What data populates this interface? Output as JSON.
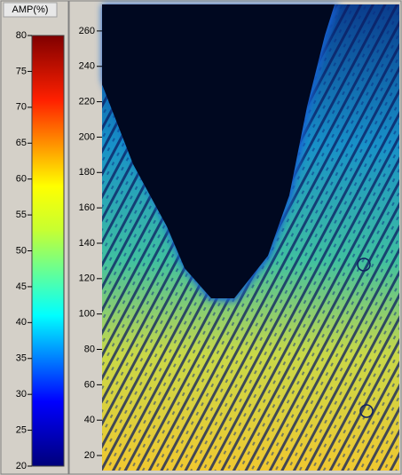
{
  "colorbar": {
    "title": "AMP(%)",
    "range": [
      20,
      80
    ],
    "ticks": [
      20,
      25,
      30,
      35,
      40,
      45,
      50,
      55,
      60,
      65,
      70,
      75,
      80
    ]
  },
  "image_axis": {
    "range": [
      11.5,
      275
    ],
    "ticks": [
      20,
      40,
      60,
      80,
      100,
      120,
      140,
      160,
      180,
      200,
      220,
      240,
      260
    ]
  }
}
